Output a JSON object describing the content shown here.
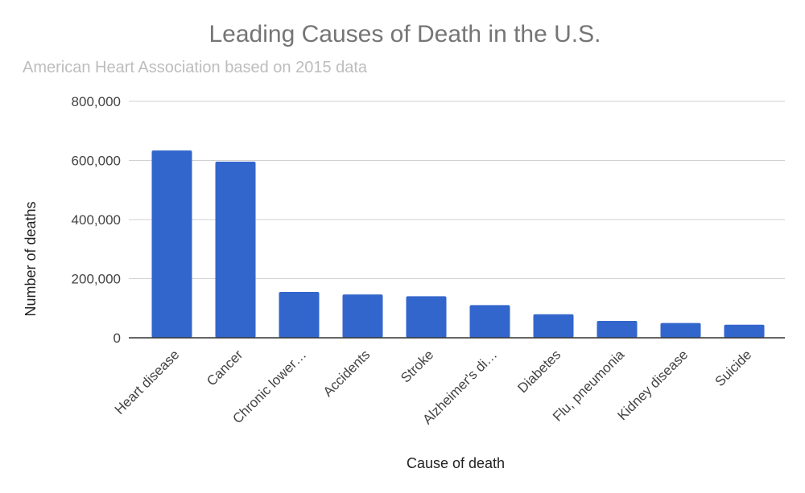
{
  "chart_data": {
    "type": "bar",
    "title": "Leading Causes of Death in the U.S.",
    "subtitle": "American Heart Association based on 2015 data",
    "xlabel": "Cause of death",
    "ylabel": "Number of deaths",
    "categories": [
      "Heart disease",
      "Cancer",
      "Chronic lower…",
      "Accidents",
      "Stroke",
      "Alzheimer's di…",
      "Diabetes",
      "Flu, pneumonia",
      "Kidney disease",
      "Suicide"
    ],
    "values": [
      633842,
      595930,
      155041,
      146571,
      140323,
      110561,
      79535,
      57062,
      49959,
      44193
    ],
    "yticks": [
      "0",
      "200,000",
      "400,000",
      "600,000",
      "800,000"
    ],
    "ylim": [
      0,
      800000
    ],
    "grid": true,
    "legend": "none",
    "bar_color": "#3366cc"
  }
}
